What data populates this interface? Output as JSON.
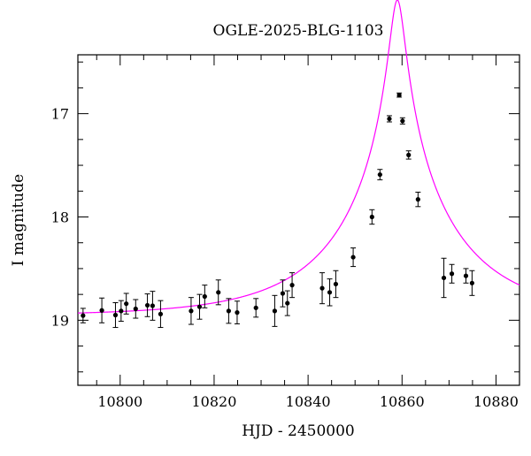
{
  "chart_data": {
    "type": "scatter",
    "title": "OGLE-2025-BLG-1103",
    "xlabel": "HJD - 2450000",
    "ylabel": "I magnitude",
    "xlim": [
      10791,
      10885
    ],
    "ylim": [
      19.63,
      16.43
    ],
    "y_inverted": true,
    "x_ticks": [
      10800,
      10820,
      10840,
      10860,
      10880
    ],
    "y_ticks": [
      17,
      18,
      19
    ],
    "x_minor_step": 5,
    "y_minor_step": 0.25,
    "grid": false,
    "legend": "none",
    "colors": {
      "points": "#000000",
      "model": "#ff00ff",
      "axes": "#000000"
    },
    "series": [
      {
        "kind": "points_with_errorbars",
        "points": [
          {
            "x": 10792.1,
            "y": 18.955,
            "err": 0.07
          },
          {
            "x": 10796.1,
            "y": 18.905,
            "err": 0.12
          },
          {
            "x": 10799.0,
            "y": 18.95,
            "err": 0.12
          },
          {
            "x": 10800.2,
            "y": 18.91,
            "err": 0.1
          },
          {
            "x": 10801.3,
            "y": 18.84,
            "err": 0.1
          },
          {
            "x": 10803.3,
            "y": 18.89,
            "err": 0.09
          },
          {
            "x": 10805.8,
            "y": 18.855,
            "err": 0.11
          },
          {
            "x": 10806.9,
            "y": 18.86,
            "err": 0.14
          },
          {
            "x": 10808.6,
            "y": 18.94,
            "err": 0.13
          },
          {
            "x": 10815.1,
            "y": 18.91,
            "err": 0.13
          },
          {
            "x": 10816.9,
            "y": 18.87,
            "err": 0.12
          },
          {
            "x": 10818.0,
            "y": 18.77,
            "err": 0.11
          },
          {
            "x": 10820.9,
            "y": 18.73,
            "err": 0.12
          },
          {
            "x": 10823.1,
            "y": 18.91,
            "err": 0.12
          },
          {
            "x": 10824.9,
            "y": 18.925,
            "err": 0.11
          },
          {
            "x": 10828.9,
            "y": 18.88,
            "err": 0.09
          },
          {
            "x": 10832.9,
            "y": 18.91,
            "err": 0.15
          },
          {
            "x": 10834.6,
            "y": 18.74,
            "err": 0.13
          },
          {
            "x": 10835.6,
            "y": 18.835,
            "err": 0.12
          },
          {
            "x": 10836.6,
            "y": 18.66,
            "err": 0.12
          },
          {
            "x": 10843.0,
            "y": 18.69,
            "err": 0.15
          },
          {
            "x": 10844.6,
            "y": 18.73,
            "err": 0.13
          },
          {
            "x": 10845.9,
            "y": 18.65,
            "err": 0.13
          },
          {
            "x": 10849.6,
            "y": 18.39,
            "err": 0.09
          },
          {
            "x": 10853.6,
            "y": 18.0,
            "err": 0.07
          },
          {
            "x": 10855.3,
            "y": 17.59,
            "err": 0.05
          },
          {
            "x": 10857.3,
            "y": 17.05,
            "err": 0.03
          },
          {
            "x": 10859.4,
            "y": 16.82,
            "err": 0.02
          },
          {
            "x": 10860.1,
            "y": 17.07,
            "err": 0.03
          },
          {
            "x": 10861.4,
            "y": 17.4,
            "err": 0.04
          },
          {
            "x": 10863.4,
            "y": 17.83,
            "err": 0.07
          },
          {
            "x": 10868.9,
            "y": 18.59,
            "err": 0.19
          },
          {
            "x": 10870.6,
            "y": 18.55,
            "err": 0.09
          },
          {
            "x": 10873.6,
            "y": 18.57,
            "err": 0.07
          },
          {
            "x": 10874.9,
            "y": 18.64,
            "err": 0.12
          }
        ]
      },
      {
        "kind": "model_curve",
        "model": {
          "t0": 10859.0,
          "tE": 25,
          "u0": 0.06,
          "Ibase": 18.955
        },
        "x_range": [
          10791,
          10885
        ]
      }
    ]
  }
}
